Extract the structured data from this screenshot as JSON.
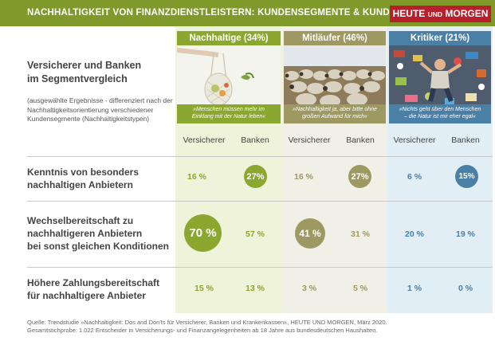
{
  "header": {
    "title": "NACHHALTIGKEIT VON FINANZDIENSTLEISTERN: KUNDENSEGMENTE & KUNDENVERHALTEN",
    "logo_main": "HEUTE",
    "logo_small": "UND",
    "logo_end": "MORGEN"
  },
  "intro": {
    "title_line1": "Versicherer und Banken",
    "title_line2": "im Segmentvergleich",
    "subtitle_line1": "(ausgewählte Ergebnisse - differenziert nach der",
    "subtitle_line2": "Nachhaltigkeitsorientierung verschiedener",
    "subtitle_line3": "Kundensegmente (Nachhaltigkeitstypen)"
  },
  "segments": {
    "green": {
      "label": "Nachhaltige (34%)",
      "quote_line1": "»Menschen müssen mehr im",
      "quote_line2": "Einklang mit der Natur leben«",
      "color": "#8ba72f"
    },
    "olive": {
      "label": "Mitläufer (46%)",
      "quote_line1": "»Nachhaltigkeit ja, aber bitte ohne",
      "quote_line2": "großen Aufwand für mich«",
      "color": "#9e9863"
    },
    "blue": {
      "label": "Kritiker (21%)",
      "quote_line1": "»Nichts geht über den Menschen",
      "quote_line2": "– die Natur ist mir eher egal«",
      "color": "#4a7fa6"
    }
  },
  "columns": {
    "versicherer": "Versicherer",
    "banken": "Banken"
  },
  "rows": [
    {
      "label_line1": "Kenntnis von besonders",
      "label_line2": "nachhaltigen Anbietern",
      "values": [
        "16 %",
        "27%",
        "16 %",
        "27%",
        "6 %",
        "15%"
      ]
    },
    {
      "label_line1": "Wechselbereitschaft zu",
      "label_line2": "nachhaltigeren Anbietern",
      "label_line3": "bei sonst gleichen Konditionen",
      "values": [
        "70 %",
        "57 %",
        "41 %",
        "31 %",
        "20 %",
        "19 %"
      ]
    },
    {
      "label_line1": "Höhere Zahlungsbereitschaft",
      "label_line2": "für nachhaltigere Anbieter",
      "values": [
        "15 %",
        "13 %",
        "3 %",
        "5 %",
        "1 %",
        "0 %"
      ]
    }
  ],
  "source": {
    "line1": "Quelle: Trendstudie »Nachhaltigkeit: Dos and Don'ts für Versicherer, Banken und Krankenkassen«, HEUTE UND MORGEN, März 2020.",
    "line2": "Gesamtstichprobe: 1.022 Entscheider in Versicherungs- und Finanzangelegenheiten ab 18 Jahre aus bundesdeutschen Haushalten."
  }
}
